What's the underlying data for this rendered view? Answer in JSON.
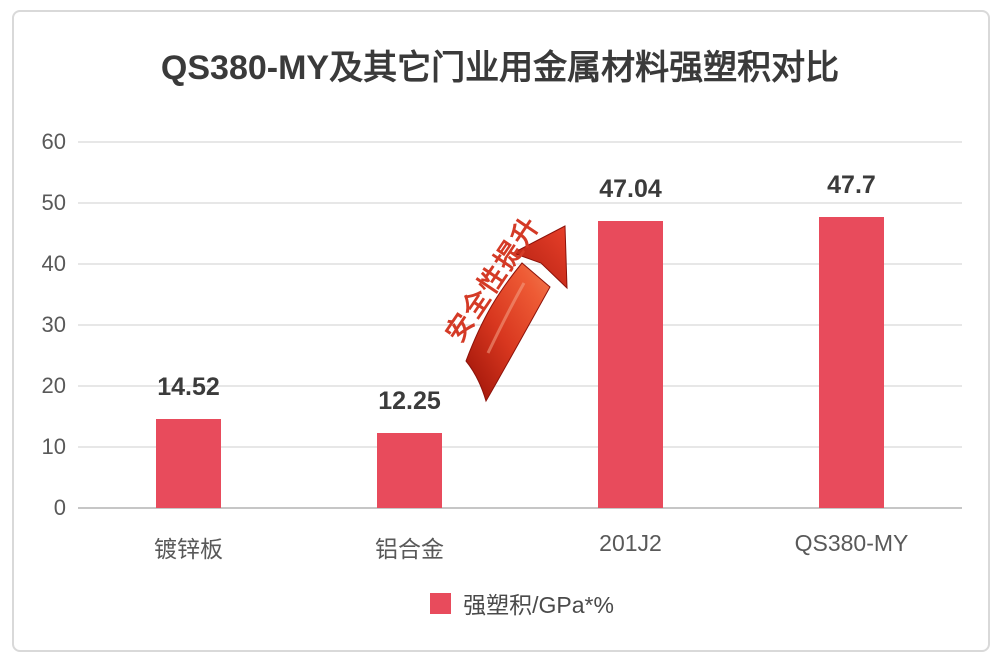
{
  "title": "QS380-MY及其它门业用金属材料强塑积对比",
  "annotation": {
    "text": "安全性提升"
  },
  "legend": {
    "label": "强塑积/GPa*%",
    "swatch_color": "#e84b5c"
  },
  "colors": {
    "bar": "#e84b5c",
    "grid": "#e7e7e7",
    "baseline": "#c6c6c6",
    "axis_text": "#595959",
    "value_text": "#3b3b3b",
    "title_text": "#3a3a3a",
    "annotation_red": "#d43a26",
    "frame_border": "#d9d9d9"
  },
  "chart_data": {
    "type": "bar",
    "title": "QS380-MY及其它门业用金属材料强塑积对比",
    "categories": [
      "镀锌板",
      "铝合金",
      "201J2",
      "QS380-MY"
    ],
    "values": [
      14.52,
      12.25,
      47.04,
      47.7
    ],
    "value_labels": [
      "14.52",
      "12.25",
      "47.04",
      "47.7"
    ],
    "series": [
      {
        "name": "强塑积/GPa*%",
        "values": [
          14.52,
          12.25,
          47.04,
          47.7
        ]
      }
    ],
    "xlabel": "",
    "ylabel": "",
    "ylim": [
      0,
      60
    ],
    "yticks": [
      0,
      10,
      20,
      30,
      40,
      50,
      60
    ],
    "grid": true,
    "legend_position": "bottom",
    "annotations": [
      "安全性提升 (red arrow pointing up-right between 铝合金 and 201J2 bars)"
    ]
  }
}
